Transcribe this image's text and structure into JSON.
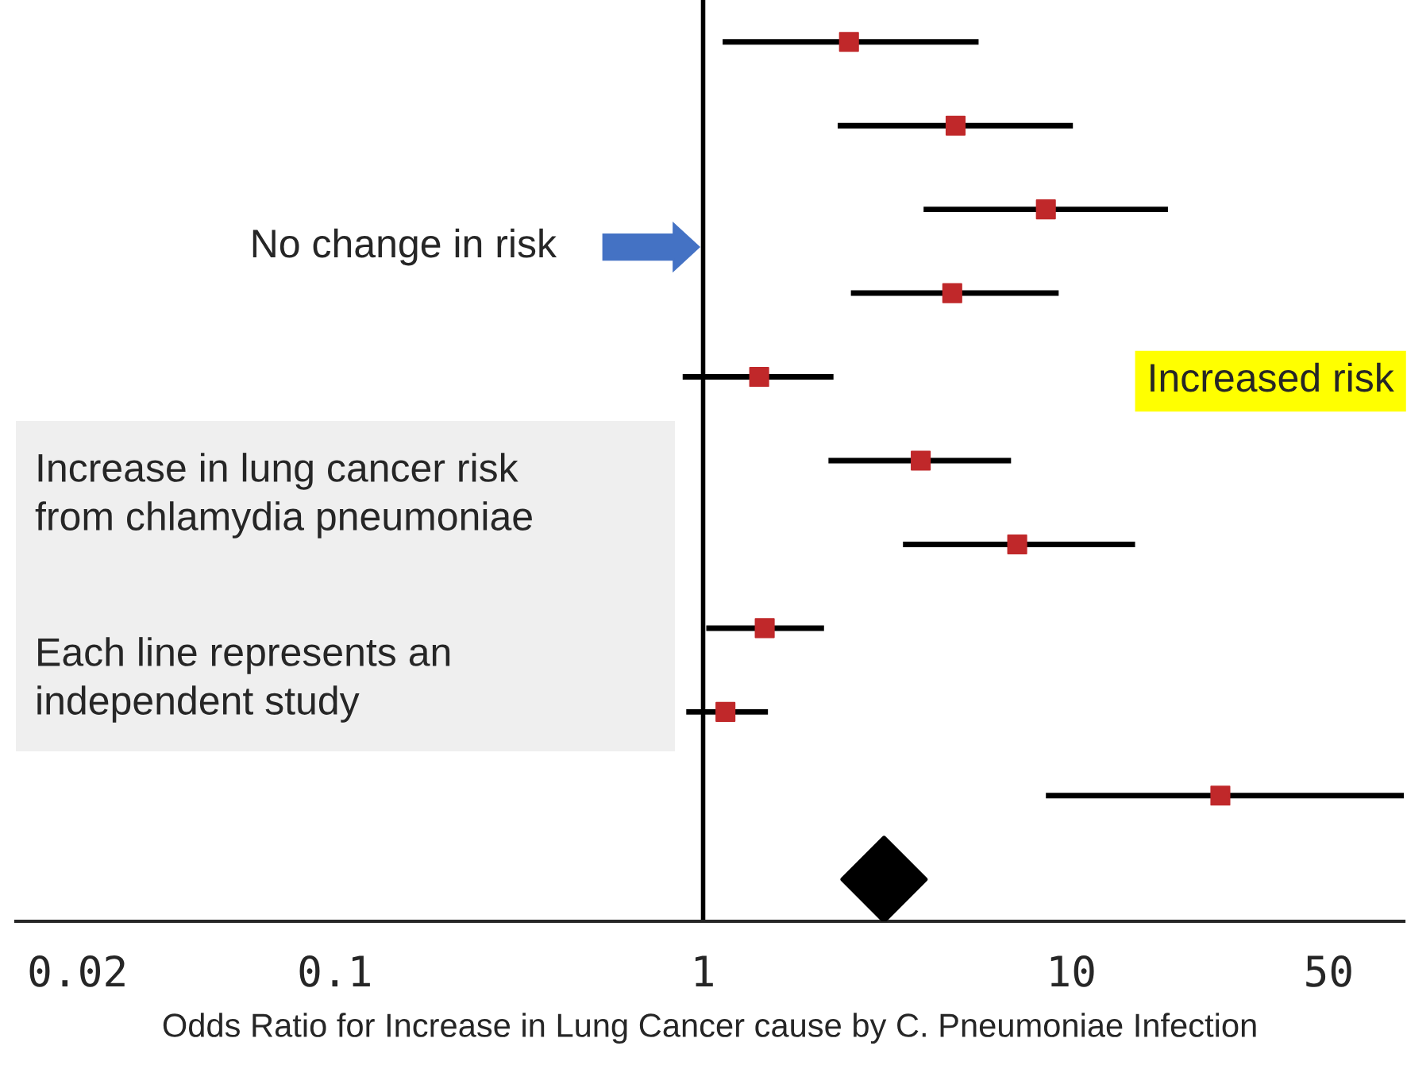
{
  "chart_data": {
    "type": "scatter",
    "orientation": "horizontal",
    "log": "x",
    "categories": [
      null,
      null,
      null,
      null,
      null,
      null,
      null,
      null,
      null,
      null,
      null
    ],
    "series": [
      {
        "marker": "square",
        "color": "#c0282a",
        "values": [
          2.49,
          4.85,
          8.53,
          4.75,
          1.42,
          3.9,
          7.13,
          1.47,
          1.15,
          25.4,
          null
        ],
        "errors": [
          [
            1.13,
            5.6
          ],
          [
            2.32,
            10.1
          ],
          [
            3.97,
            18.3
          ],
          [
            2.52,
            9.24
          ],
          [
            0.88,
            2.26
          ],
          [
            2.19,
            6.86
          ],
          [
            3.49,
            14.9
          ],
          [
            1.02,
            2.13
          ],
          [
            0.9,
            1.5
          ],
          [
            8.53,
            80
          ],
          null
        ]
      },
      {
        "marker": "diamond",
        "color": "#000000",
        "values": [
          null,
          null,
          null,
          null,
          null,
          null,
          null,
          null,
          null,
          null,
          3.1
        ]
      }
    ],
    "xlim": [
      0.0136,
      80
    ],
    "xticks": [
      0.02,
      0.1,
      1,
      10,
      50
    ],
    "tick_labels": "x",
    "grid": false,
    "legend": false,
    "xlabel": "Odds Ratio for Increase in Lung Cancer cause by C. Pneumoniae Infection",
    "ref_lines": [
      {
        "axis": "x",
        "value": 1,
        "label": "No change in risk",
        "color": "#000000"
      }
    ],
    "annotations": [
      "Increased risk",
      "Increase in lung cancer risk\nfrom chlamydia pneumoniae",
      "Each line represents an\nindependent study"
    ]
  }
}
